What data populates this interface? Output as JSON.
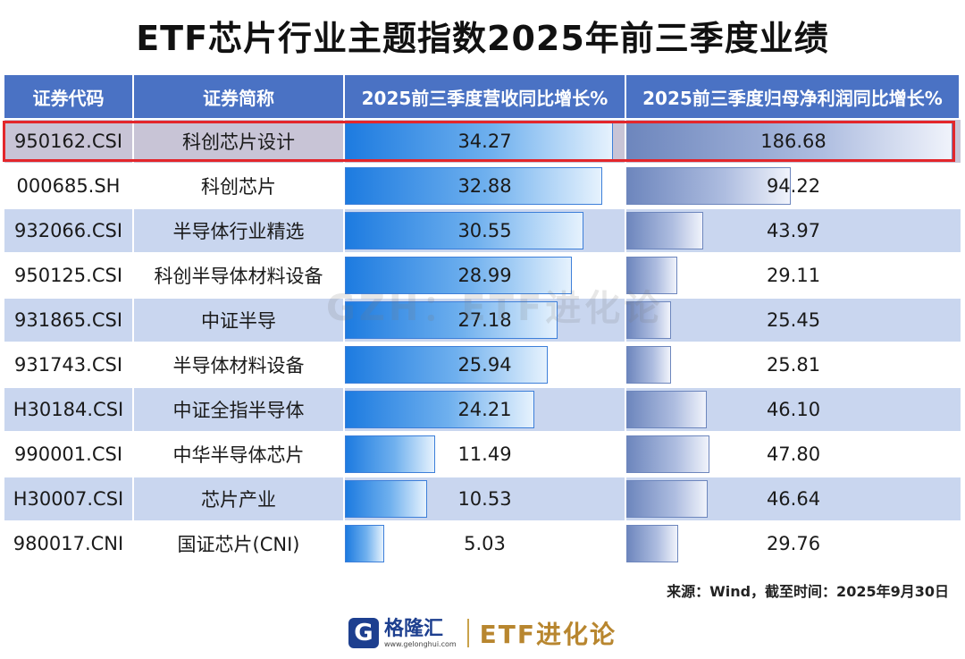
{
  "title": "ETF芯片行业主题指数2025年前三季度业绩",
  "watermark": "GZH：ETF进化论",
  "source": "来源：Wind，截至时间：2025年9月30日",
  "logo": {
    "mark": "G",
    "name": "格隆汇",
    "url": "www.gelonghui.com",
    "brand2": "ETF进化论"
  },
  "colors": {
    "header": "#4a72c4",
    "highlight": "#e3262b",
    "revenue_bar": "#1d7be0",
    "profit_bar": "#6d86bd"
  },
  "chart_data": {
    "type": "table",
    "title": "ETF芯片行业主题指数2025年前三季度业绩",
    "columns": [
      "证券代码",
      "证券简称",
      "2025前三季度营收同比增长%",
      "2025前三季度归母净利润同比增长%"
    ],
    "highlighted_row": 0,
    "rows": [
      {
        "code": "950162.CSI",
        "name": "科创芯片设计",
        "revenue_growth": "34.27",
        "profit_growth": "186.68"
      },
      {
        "code": "000685.SH",
        "name": "科创芯片",
        "revenue_growth": "32.88",
        "profit_growth": "94.22"
      },
      {
        "code": "932066.CSI",
        "name": "半导体行业精选",
        "revenue_growth": "30.55",
        "profit_growth": "43.97"
      },
      {
        "code": "950125.CSI",
        "name": "科创半导体材料设备",
        "revenue_growth": "28.99",
        "profit_growth": "29.11"
      },
      {
        "code": "931865.CSI",
        "name": "中证半导",
        "revenue_growth": "27.18",
        "profit_growth": "25.45"
      },
      {
        "code": "931743.CSI",
        "name": "半导体材料设备",
        "revenue_growth": "25.94",
        "profit_growth": "25.81"
      },
      {
        "code": "H30184.CSI",
        "name": "中证全指半导体",
        "revenue_growth": "24.21",
        "profit_growth": "46.10"
      },
      {
        "code": "990001.CSI",
        "name": "中华半导体芯片",
        "revenue_growth": "11.49",
        "profit_growth": "47.80"
      },
      {
        "code": "H30007.CSI",
        "name": "芯片产业",
        "revenue_growth": "10.53",
        "profit_growth": "46.64"
      },
      {
        "code": "980017.CNI",
        "name": "国证芯片(CNI)",
        "revenue_growth": "5.03",
        "profit_growth": "29.76"
      }
    ]
  }
}
